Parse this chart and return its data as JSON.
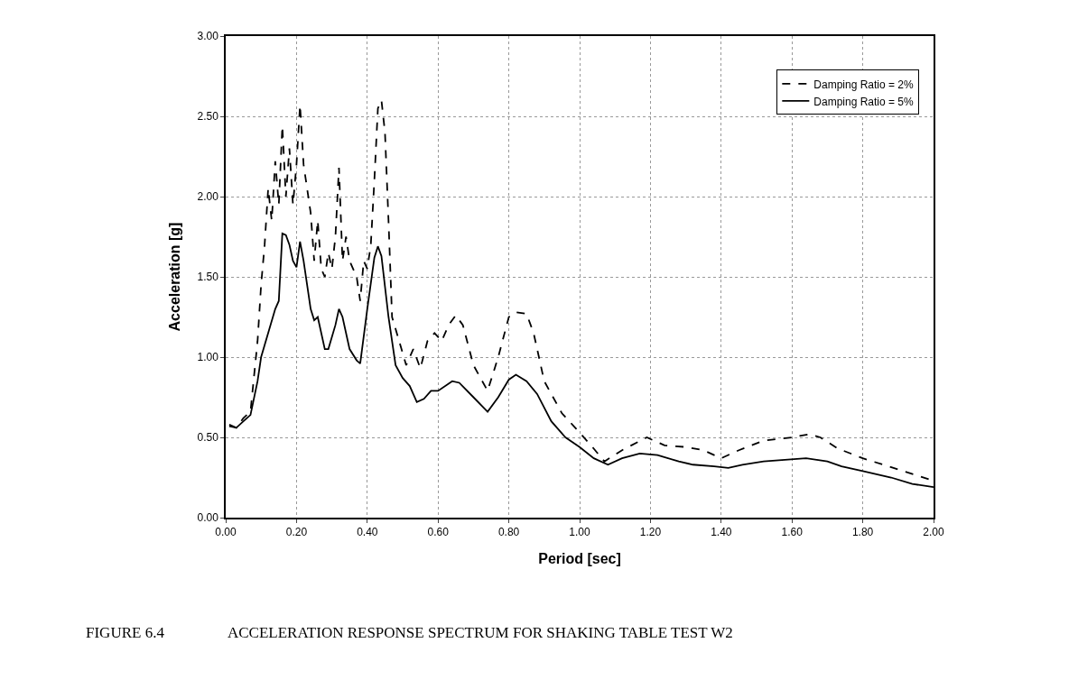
{
  "chart_data": {
    "type": "line",
    "xlabel": "Period [sec]",
    "ylabel": "Acceleration [g]",
    "annotations": [
      "FIGURE 6.4\tACCELERATION RESPONSE SPECTRUM FOR SHAKING TABLE TEST W2"
    ],
    "xlim": [
      0,
      2
    ],
    "ylim": [
      0,
      3
    ],
    "xticks": [
      {
        "value": 0,
        "label": "0.00"
      },
      {
        "value": 0.2,
        "label": "0.20"
      },
      {
        "value": 0.4,
        "label": "0.40"
      },
      {
        "value": 0.6,
        "label": "0.60"
      },
      {
        "value": 0.8,
        "label": "0.80"
      },
      {
        "value": 1,
        "label": "1.00"
      },
      {
        "value": 1.2,
        "label": "1.20"
      },
      {
        "value": 1.4,
        "label": "1.40"
      },
      {
        "value": 1.6,
        "label": "1.60"
      },
      {
        "value": 1.8,
        "label": "1.80"
      },
      {
        "value": 2,
        "label": "2.00"
      }
    ],
    "yticks": [
      {
        "value": 0,
        "label": "0.00"
      },
      {
        "value": 0.5,
        "label": "0.50"
      },
      {
        "value": 1,
        "label": "1.00"
      },
      {
        "value": 1.5,
        "label": "1.50"
      },
      {
        "value": 2,
        "label": "2.00"
      },
      {
        "value": 2.5,
        "label": "2.50"
      },
      {
        "value": 3,
        "label": "3.00"
      }
    ],
    "grid": true,
    "legend": "top right",
    "marker": "none",
    "series": [
      {
        "name": "Damping Ratio = 2%",
        "color": "#000000",
        "line_style": "dashed",
        "x": [
          0.01,
          0.03,
          0.05,
          0.07,
          0.09,
          0.1,
          0.11,
          0.12,
          0.13,
          0.14,
          0.15,
          0.16,
          0.17,
          0.18,
          0.19,
          0.2,
          0.21,
          0.22,
          0.24,
          0.25,
          0.26,
          0.27,
          0.28,
          0.29,
          0.3,
          0.31,
          0.32,
          0.33,
          0.34,
          0.35,
          0.37,
          0.38,
          0.39,
          0.4,
          0.41,
          0.42,
          0.43,
          0.44,
          0.45,
          0.46,
          0.47,
          0.49,
          0.51,
          0.53,
          0.55,
          0.57,
          0.59,
          0.61,
          0.63,
          0.65,
          0.67,
          0.7,
          0.74,
          0.77,
          0.8,
          0.82,
          0.85,
          0.87,
          0.9,
          0.95,
          1.0,
          1.04,
          1.07,
          1.12,
          1.19,
          1.24,
          1.3,
          1.35,
          1.4,
          1.45,
          1.52,
          1.6,
          1.65,
          1.68,
          1.73,
          1.8,
          1.9,
          2.0
        ],
        "values": [
          0.58,
          0.56,
          0.62,
          0.66,
          1.1,
          1.45,
          1.7,
          2.05,
          1.85,
          2.22,
          1.95,
          2.44,
          2.0,
          2.3,
          1.95,
          2.2,
          2.57,
          2.2,
          1.9,
          1.6,
          1.85,
          1.55,
          1.5,
          1.65,
          1.55,
          1.75,
          2.18,
          1.6,
          1.75,
          1.6,
          1.5,
          1.35,
          1.6,
          1.55,
          1.7,
          2.1,
          2.55,
          2.6,
          2.4,
          1.85,
          1.25,
          1.1,
          0.95,
          1.05,
          0.93,
          1.1,
          1.15,
          1.1,
          1.2,
          1.26,
          1.2,
          0.95,
          0.79,
          1.0,
          1.25,
          1.28,
          1.27,
          1.15,
          0.85,
          0.65,
          0.53,
          0.43,
          0.35,
          0.42,
          0.5,
          0.45,
          0.44,
          0.42,
          0.37,
          0.42,
          0.48,
          0.5,
          0.52,
          0.5,
          0.43,
          0.37,
          0.3,
          0.23
        ]
      },
      {
        "name": "Damping Ratio = 5%",
        "color": "#000000",
        "line_style": "solid",
        "x": [
          0.01,
          0.03,
          0.05,
          0.07,
          0.09,
          0.1,
          0.12,
          0.14,
          0.15,
          0.16,
          0.17,
          0.18,
          0.19,
          0.2,
          0.21,
          0.22,
          0.24,
          0.25,
          0.26,
          0.28,
          0.29,
          0.31,
          0.32,
          0.33,
          0.35,
          0.37,
          0.38,
          0.4,
          0.42,
          0.43,
          0.44,
          0.46,
          0.48,
          0.5,
          0.52,
          0.54,
          0.56,
          0.58,
          0.6,
          0.64,
          0.66,
          0.7,
          0.74,
          0.77,
          0.8,
          0.82,
          0.85,
          0.88,
          0.92,
          0.96,
          1.0,
          1.04,
          1.08,
          1.12,
          1.17,
          1.22,
          1.28,
          1.32,
          1.38,
          1.42,
          1.46,
          1.52,
          1.58,
          1.64,
          1.7,
          1.74,
          1.8,
          1.88,
          1.94,
          2.0
        ],
        "values": [
          0.57,
          0.56,
          0.6,
          0.64,
          0.85,
          1.0,
          1.15,
          1.3,
          1.35,
          1.77,
          1.76,
          1.7,
          1.6,
          1.56,
          1.72,
          1.6,
          1.3,
          1.23,
          1.25,
          1.05,
          1.05,
          1.2,
          1.3,
          1.25,
          1.05,
          0.98,
          0.96,
          1.3,
          1.62,
          1.69,
          1.63,
          1.25,
          0.95,
          0.87,
          0.82,
          0.72,
          0.74,
          0.79,
          0.79,
          0.85,
          0.84,
          0.75,
          0.66,
          0.75,
          0.86,
          0.89,
          0.85,
          0.77,
          0.6,
          0.5,
          0.44,
          0.37,
          0.33,
          0.37,
          0.4,
          0.39,
          0.35,
          0.33,
          0.32,
          0.31,
          0.33,
          0.35,
          0.36,
          0.37,
          0.35,
          0.32,
          0.29,
          0.25,
          0.21,
          0.19
        ]
      }
    ]
  }
}
